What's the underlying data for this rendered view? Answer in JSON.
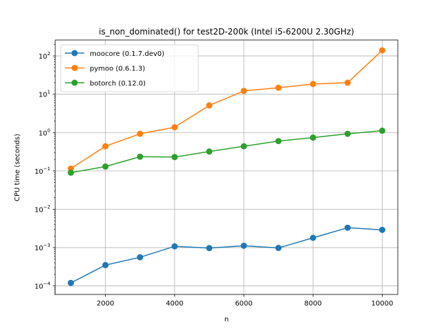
{
  "chart_data": {
    "type": "line",
    "title": "is_non_dominated() for test2D-200k (Intel i5-6200U 2.30GHz)",
    "xlabel": "n",
    "ylabel": "CPU time (seconds)",
    "x": [
      1000,
      2000,
      3000,
      4000,
      5000,
      6000,
      7000,
      8000,
      9000,
      10000
    ],
    "xlim": [
      550,
      10450
    ],
    "ylim": [
      6e-05,
      260
    ],
    "yscale": "log",
    "grid": true,
    "legend_position": "top-left",
    "x_ticks": [
      2000,
      4000,
      6000,
      8000,
      10000
    ],
    "x_tick_labels": [
      "2000",
      "4000",
      "6000",
      "8000",
      "10000"
    ],
    "y_ticks": [
      0.0001,
      0.001,
      0.01,
      0.1,
      1,
      10,
      100
    ],
    "y_tick_labels": [
      {
        "base": "10",
        "exp": "−4"
      },
      {
        "base": "10",
        "exp": "−3"
      },
      {
        "base": "10",
        "exp": "−2"
      },
      {
        "base": "10",
        "exp": "−1"
      },
      {
        "base": "10",
        "exp": "0"
      },
      {
        "base": "10",
        "exp": "1"
      },
      {
        "base": "10",
        "exp": "2"
      }
    ],
    "series": [
      {
        "name": "moocore (0.1.7.dev0)",
        "color": "#1f77b4",
        "values": [
          0.00012,
          0.00035,
          0.00056,
          0.00108,
          0.00097,
          0.00112,
          0.00098,
          0.0018,
          0.0033,
          0.0029
        ]
      },
      {
        "name": "pymoo (0.6.1.3)",
        "color": "#ff7f0e",
        "values": [
          0.115,
          0.44,
          0.93,
          1.38,
          5.1,
          12.2,
          14.8,
          18.5,
          20.0,
          140
        ]
      },
      {
        "name": "botorch (0.12.0)",
        "color": "#2ca02c",
        "values": [
          0.09,
          0.13,
          0.235,
          0.23,
          0.32,
          0.44,
          0.6,
          0.74,
          0.93,
          1.12
        ]
      }
    ]
  }
}
